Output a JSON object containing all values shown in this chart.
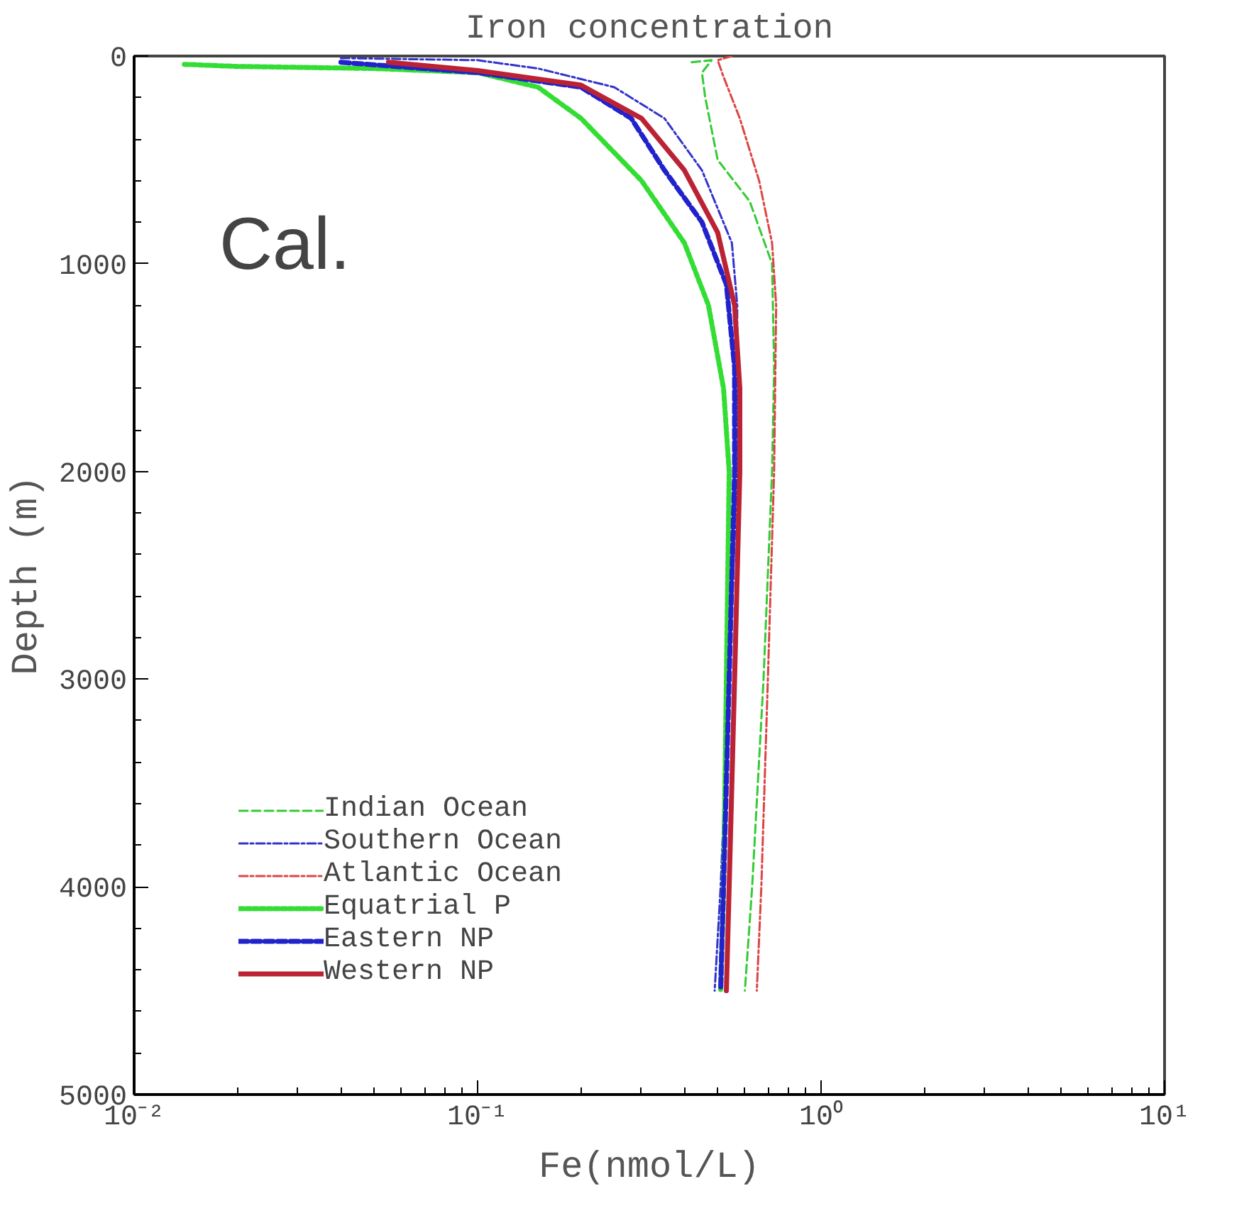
{
  "chart_data": {
    "type": "line",
    "title": "Iron concentration",
    "xlabel": "Fe(nmol/L)",
    "ylabel": "Depth (m)",
    "log": "x",
    "xlim": [
      0.01,
      10
    ],
    "xticks": [
      {
        "value": 0.01,
        "label": "10⁻²"
      },
      {
        "value": 0.1,
        "label": "10⁻¹"
      },
      {
        "value": 1,
        "label": "10⁰"
      },
      {
        "value": 10,
        "label": "10¹"
      }
    ],
    "ylim": [
      5000,
      0
    ],
    "yticks": [
      0,
      1000,
      2000,
      3000,
      4000,
      5000
    ],
    "grid": false,
    "legend": "bottom left",
    "annotations": [
      "Cal."
    ],
    "series": [
      {
        "name": "Indian Ocean",
        "color": "#33cc33",
        "line_style": "dashed",
        "x": [
          0.42,
          0.48,
          0.45,
          0.46,
          0.5,
          0.62,
          0.72,
          0.73,
          0.72,
          0.68,
          0.63,
          0.6
        ],
        "values": [
          30,
          20,
          80,
          200,
          500,
          700,
          1000,
          1500,
          2000,
          3000,
          4000,
          4500
        ]
      },
      {
        "name": "Southern Ocean",
        "color": "#3333cc",
        "line_style": "dashdot",
        "x": [
          0.04,
          0.1,
          0.15,
          0.25,
          0.35,
          0.45,
          0.55,
          0.57,
          0.57,
          0.54,
          0.51,
          0.49
        ],
        "values": [
          10,
          20,
          60,
          150,
          300,
          550,
          900,
          1200,
          2000,
          3000,
          4000,
          4500
        ]
      },
      {
        "name": "Atlantic Ocean",
        "color": "#dd4444",
        "line_style": "dashdot",
        "x": [
          0.55,
          0.5,
          0.52,
          0.58,
          0.66,
          0.72,
          0.74,
          0.73,
          0.7,
          0.67,
          0.65
        ],
        "values": [
          0,
          20,
          100,
          300,
          600,
          900,
          1200,
          2000,
          3000,
          4000,
          4500
        ]
      },
      {
        "name": "Equatrial P",
        "color": "#33dd33",
        "line_style": "dotted",
        "x": [
          0.014,
          0.02,
          0.05,
          0.1,
          0.15,
          0.2,
          0.3,
          0.4,
          0.47,
          0.52,
          0.54,
          0.53,
          0.52,
          0.51
        ],
        "values": [
          40,
          50,
          60,
          80,
          150,
          300,
          600,
          900,
          1200,
          1600,
          2000,
          3000,
          4000,
          4500
        ]
      },
      {
        "name": "Eastern NP",
        "color": "#2222cc",
        "line_style": "dashed",
        "x": [
          0.04,
          0.1,
          0.2,
          0.28,
          0.35,
          0.45,
          0.53,
          0.56,
          0.56,
          0.54,
          0.52,
          0.51
        ],
        "values": [
          30,
          80,
          150,
          300,
          550,
          800,
          1100,
          1500,
          2000,
          3000,
          4000,
          4500
        ]
      },
      {
        "name": "Western NP",
        "color": "#bb2233",
        "line_style": "solid",
        "x": [
          0.055,
          0.1,
          0.2,
          0.3,
          0.4,
          0.5,
          0.56,
          0.58,
          0.58,
          0.56,
          0.54,
          0.53
        ],
        "values": [
          30,
          70,
          140,
          300,
          550,
          850,
          1200,
          1600,
          2000,
          3000,
          4000,
          4500
        ]
      }
    ]
  }
}
